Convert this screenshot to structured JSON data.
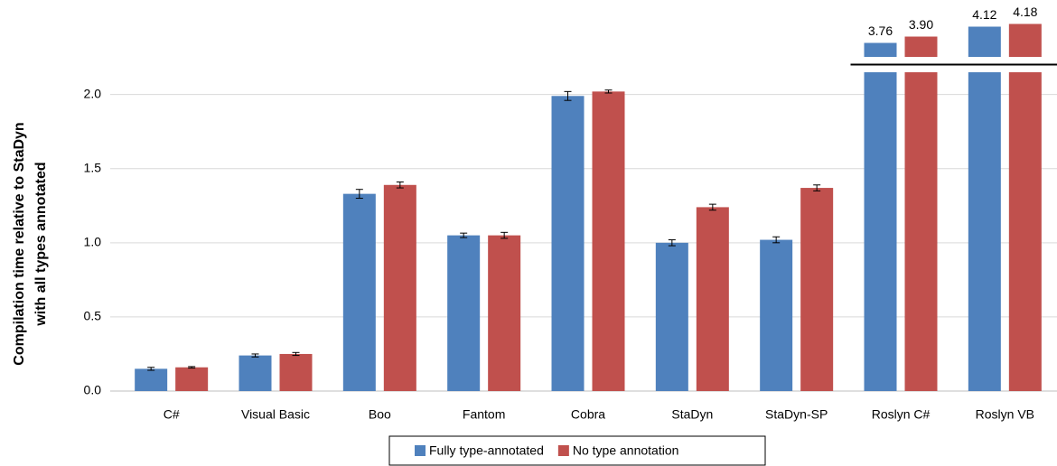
{
  "chart_data": {
    "type": "bar",
    "categories": [
      "C#",
      "Visual Basic",
      "Boo",
      "Fantom",
      "Cobra",
      "StaDyn",
      "StaDyn-SP",
      "Roslyn C#",
      "Roslyn VB"
    ],
    "y_label": [
      "Compilation time relative to StaDyn",
      "with all types annotated"
    ],
    "series": [
      {
        "name": "Fully type-annotated",
        "color": "#4f81bd",
        "values": [
          0.15,
          0.24,
          1.33,
          1.05,
          1.99,
          1.0,
          1.02,
          3.76,
          4.12
        ],
        "errors": [
          0.01,
          0.01,
          0.03,
          0.015,
          0.03,
          0.02,
          0.02,
          null,
          null
        ],
        "value_labels": [
          null,
          null,
          null,
          null,
          null,
          null,
          null,
          "3.76",
          "4.12"
        ]
      },
      {
        "name": "No type annotation",
        "color": "#c0504d",
        "values": [
          0.16,
          0.25,
          1.39,
          1.05,
          2.02,
          1.24,
          1.37,
          3.9,
          4.18
        ],
        "errors": [
          0.005,
          0.01,
          0.02,
          0.02,
          0.01,
          0.02,
          0.02,
          null,
          null
        ],
        "value_labels": [
          null,
          null,
          null,
          null,
          null,
          null,
          null,
          "3.90",
          "4.18"
        ]
      }
    ],
    "ylim": [
      0,
      2.15
    ],
    "upper_ylim": [
      3.45,
      4.35
    ],
    "yticks": [
      {
        "value": 0,
        "label": "0.0"
      },
      0.5,
      {
        "value": 1,
        "label": "1.0"
      },
      1.5,
      {
        "value": 2,
        "label": "2.0"
      }
    ],
    "grid": true,
    "legend": "bottom"
  }
}
